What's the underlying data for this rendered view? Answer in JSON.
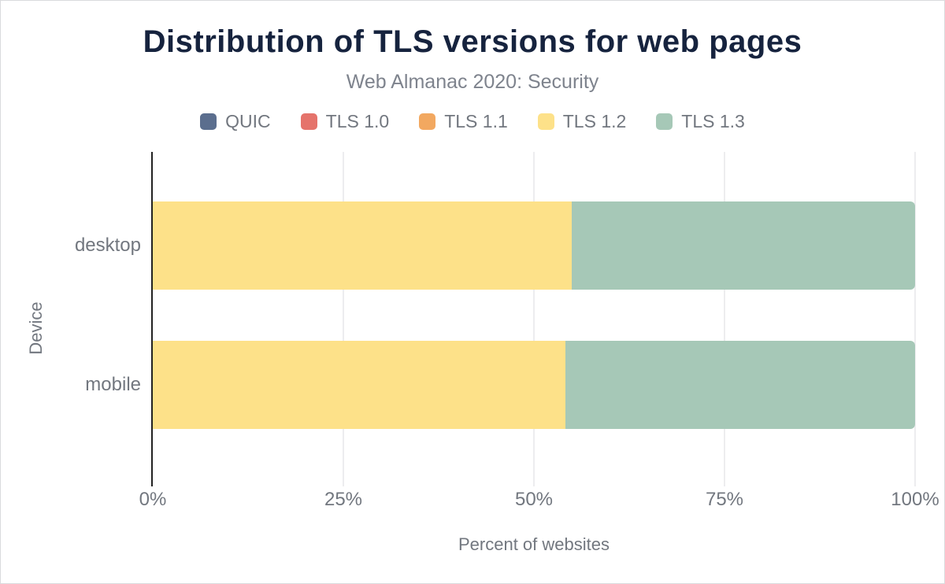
{
  "figure": {
    "title": "Distribution of TLS versions for web pages",
    "subtitle": "Web Almanac 2020: Security"
  },
  "chart_data": {
    "type": "bar",
    "orientation": "horizontal",
    "stacked": true,
    "title": "Distribution of TLS versions for web pages",
    "subtitle": "Web Almanac 2020: Security",
    "xlabel": "Percent of websites",
    "ylabel": "Device",
    "xlim": [
      0,
      100
    ],
    "x_ticks": [
      {
        "label": "0%",
        "value": 0
      },
      {
        "label": "25%",
        "value": 25
      },
      {
        "label": "50%",
        "value": 50
      },
      {
        "label": "75%",
        "value": 75
      },
      {
        "label": "100%",
        "value": 100
      }
    ],
    "grid": "vertical",
    "legend_position": "top",
    "categories": [
      "desktop",
      "mobile"
    ],
    "series": [
      {
        "name": "QUIC",
        "color": "#5b6e8e",
        "values": [
          0,
          0
        ]
      },
      {
        "name": "TLS 1.0",
        "color": "#e5736b",
        "values": [
          0,
          0
        ]
      },
      {
        "name": "TLS 1.1",
        "color": "#f2a860",
        "values": [
          0,
          0
        ]
      },
      {
        "name": "TLS 1.2",
        "color": "#fde189",
        "values": [
          55.0,
          54.1
        ]
      },
      {
        "name": "TLS 1.3",
        "color": "#a6c8b7",
        "values": [
          45.0,
          45.9
        ]
      }
    ]
  },
  "theme": {
    "title_color": "#16233e",
    "muted_text_color": "#72777f",
    "axis_color": "#222222",
    "grid_color": "#ededef",
    "border_color": "#d9dadd",
    "background": "#ffffff"
  }
}
